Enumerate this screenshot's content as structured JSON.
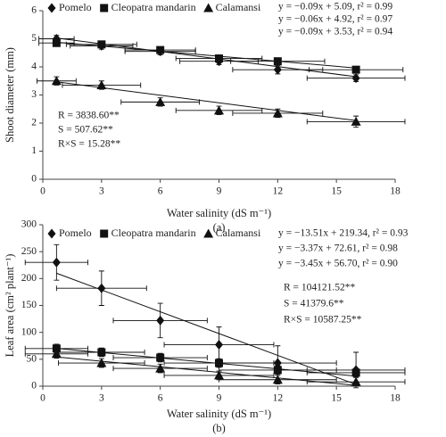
{
  "chart_data": [
    {
      "type": "scatter",
      "caption": "(a)",
      "ylabel": "Shoot diameter (mm)",
      "xlabel": "Water salinity (dS m⁻¹)",
      "xlim": [
        0,
        18
      ],
      "xticks": [
        0,
        3,
        6,
        9,
        12,
        15,
        18
      ],
      "ylim": [
        0,
        6
      ],
      "yticks": [
        0,
        1,
        2,
        3,
        4,
        5,
        6
      ],
      "legend": "top-left",
      "color": "#111",
      "x": [
        0.7,
        3,
        6,
        9,
        12,
        16
      ],
      "series": [
        {
          "name": "Pomelo",
          "marker": "diamond",
          "values": [
            5.0,
            4.75,
            4.55,
            4.2,
            3.9,
            3.6
          ],
          "y_errors": [
            0.12,
            0.12,
            0.12,
            0.12,
            0.15,
            0.12
          ],
          "x_errors": [
            0.9,
            1.6,
            1.8,
            2.0,
            2.3,
            2.5
          ],
          "trend": {
            "slope": -0.09,
            "intercept": 5.09
          }
        },
        {
          "name": "Cleopatra mandarin",
          "marker": "square",
          "values": [
            4.85,
            4.8,
            4.6,
            4.3,
            4.2,
            3.9
          ],
          "y_errors": [
            0.1,
            0.1,
            0.1,
            0.1,
            0.1,
            0.1
          ],
          "x_errors": [
            0.9,
            1.8,
            1.8,
            2.2,
            2.4,
            2.4
          ],
          "trend": {
            "slope": -0.06,
            "intercept": 4.92
          }
        },
        {
          "name": "Calamansi",
          "marker": "triangle",
          "values": [
            3.5,
            3.35,
            2.75,
            2.45,
            2.35,
            2.05
          ],
          "y_errors": [
            0.15,
            0.15,
            0.15,
            0.15,
            0.15,
            0.2
          ],
          "x_errors": [
            1.0,
            2.0,
            2.0,
            2.2,
            2.3,
            2.5
          ],
          "trend": {
            "slope": -0.09,
            "intercept": 3.53
          }
        }
      ],
      "equations": [
        "y = −0.09x + 5.09, r² = 0.99",
        "y = −0.06x + 4.92, r² = 0.97",
        "y = −0.09x + 3.53, r² = 0.94"
      ],
      "stats": [
        "R = 3838.60**",
        "S = 507.62**",
        "R×S = 15.28**"
      ]
    },
    {
      "type": "scatter",
      "caption": "(b)",
      "ylabel": "Leaf area (cm² plant⁻¹)",
      "xlabel": "Water salinity (dS m⁻¹)",
      "xlim": [
        0,
        18
      ],
      "xticks": [
        0,
        3,
        6,
        9,
        12,
        15,
        18
      ],
      "ylim": [
        0,
        300
      ],
      "yticks": [
        0,
        50,
        100,
        150,
        200,
        250,
        300
      ],
      "legend": "top-left",
      "color": "#111",
      "x": [
        0.7,
        3,
        6,
        9,
        12,
        16
      ],
      "series": [
        {
          "name": "Pomelo",
          "marker": "diamond",
          "values": [
            230,
            182,
            122,
            77,
            43,
            30
          ],
          "y_errors": [
            33,
            32,
            32,
            33,
            32,
            33
          ],
          "x_errors": [
            1.6,
            2.3,
            2.4,
            2.8,
            3.0,
            2.5
          ],
          "trend": {
            "slope": -13.51,
            "intercept": 219.34
          }
        },
        {
          "name": "Cleopatra mandarin",
          "marker": "square",
          "values": [
            70,
            63,
            53,
            43,
            30,
            25
          ],
          "y_errors": [
            8,
            8,
            8,
            8,
            8,
            8
          ],
          "x_errors": [
            1.6,
            2.2,
            2.4,
            2.8,
            3.0,
            2.5
          ],
          "trend": {
            "slope": -3.37,
            "intercept": 72.61
          }
        },
        {
          "name": "Calamansi",
          "marker": "triangle",
          "values": [
            60,
            43,
            33,
            20,
            12,
            8
          ],
          "y_errors": [
            8,
            8,
            8,
            8,
            8,
            8
          ],
          "x_errors": [
            1.6,
            2.2,
            2.4,
            2.8,
            3.0,
            2.5
          ],
          "trend": {
            "slope": -3.45,
            "intercept": 56.7
          }
        }
      ],
      "equations": [
        "y = −13.51x + 219.34, r² = 0.93",
        "y = −3.37x + 72.61, r² = 0.98",
        "y = −3.45x + 56.70, r² = 0.90"
      ],
      "stats": [
        "R = 104121.52**",
        "S = 41379.6**",
        "R×S = 10587.25**"
      ]
    }
  ]
}
